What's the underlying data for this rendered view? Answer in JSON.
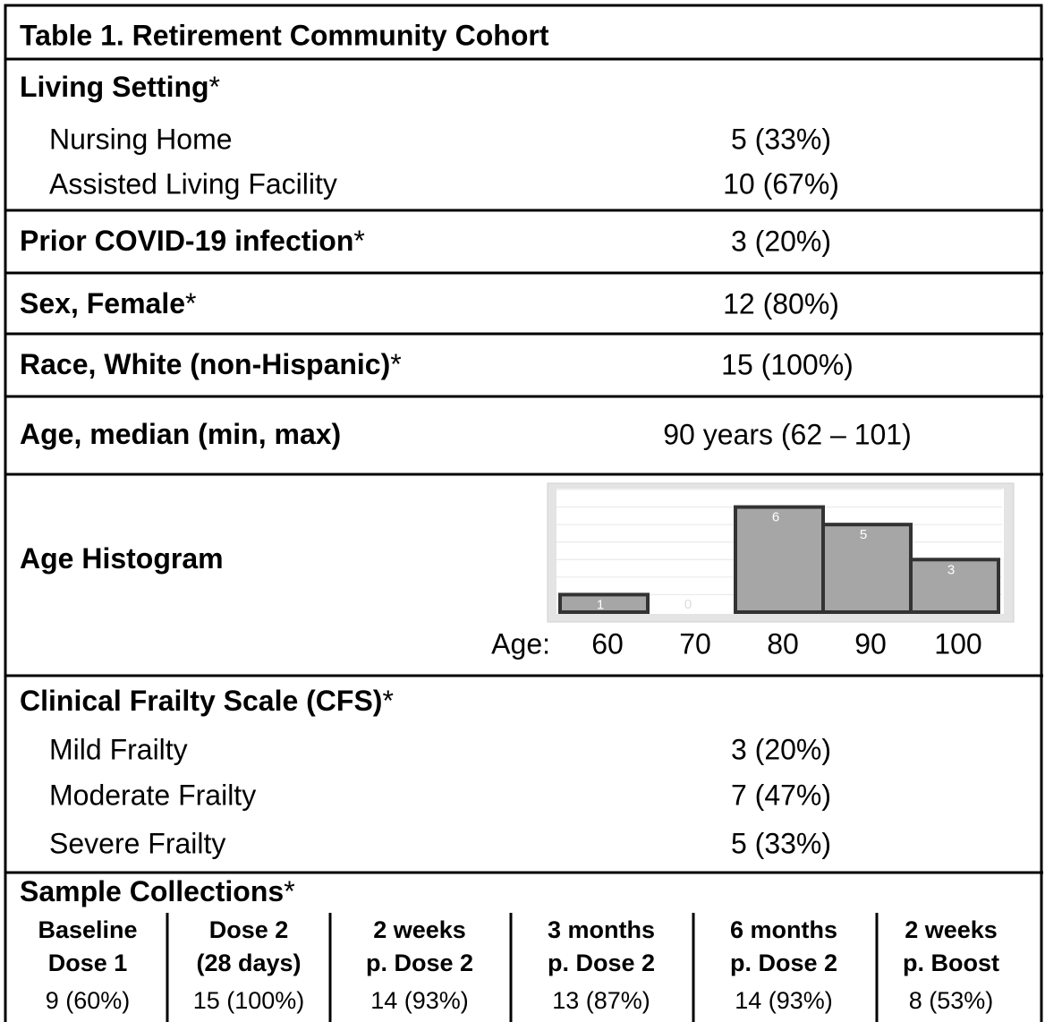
{
  "title": "Table 1. Retirement Community Cohort",
  "living_setting": {
    "label": "Living Setting",
    "marker": "*",
    "rows": [
      {
        "label": "Nursing Home",
        "value": "5 (33%)"
      },
      {
        "label": "Assisted Living Facility",
        "value": "10 (67%)"
      }
    ]
  },
  "prior_covid": {
    "label": "Prior COVID-19 infection",
    "marker": "*",
    "value": "3 (20%)"
  },
  "sex": {
    "label": "Sex, Female",
    "marker": "*",
    "value": "12 (80%)"
  },
  "race": {
    "label": "Race, White (non-Hispanic)",
    "marker": "*",
    "value": "15 (100%)"
  },
  "age": {
    "label": "Age, median (min, max)",
    "value": "90 years (62 – 101)"
  },
  "age_histogram": {
    "label": "Age Histogram",
    "chart_data": {
      "type": "bar",
      "x_label": "Age:",
      "categories": [
        60,
        70,
        80,
        90,
        100
      ],
      "values": [
        1,
        0,
        6,
        5,
        3
      ],
      "ylim": [
        0,
        7
      ],
      "grid": true,
      "color": "#a6a6a6"
    }
  },
  "cfs": {
    "label": "Clinical Frailty Scale (CFS)",
    "marker": "*",
    "rows": [
      {
        "label": "Mild Frailty",
        "value": "3 (20%)"
      },
      {
        "label": "Moderate Frailty",
        "value": "7 (47%)"
      },
      {
        "label": "Severe Frailty",
        "value": "5 (33%)"
      }
    ]
  },
  "sample_collections": {
    "label": "Sample Collections",
    "marker": "*",
    "columns": [
      {
        "header": [
          "Baseline",
          "Dose 1"
        ],
        "value": "9 (60%)"
      },
      {
        "header": [
          "Dose 2",
          "(28 days)"
        ],
        "value": "15 (100%)"
      },
      {
        "header": [
          "2 weeks",
          "p. Dose 2"
        ],
        "value": "14 (93%)"
      },
      {
        "header": [
          "3 months",
          "p. Dose 2"
        ],
        "value": "13 (87%)"
      },
      {
        "header": [
          "6 months",
          "p. Dose 2"
        ],
        "value": "14 (93%)"
      },
      {
        "header": [
          "2 weeks",
          "p. Boost"
        ],
        "value": "8 (53%)"
      }
    ]
  }
}
